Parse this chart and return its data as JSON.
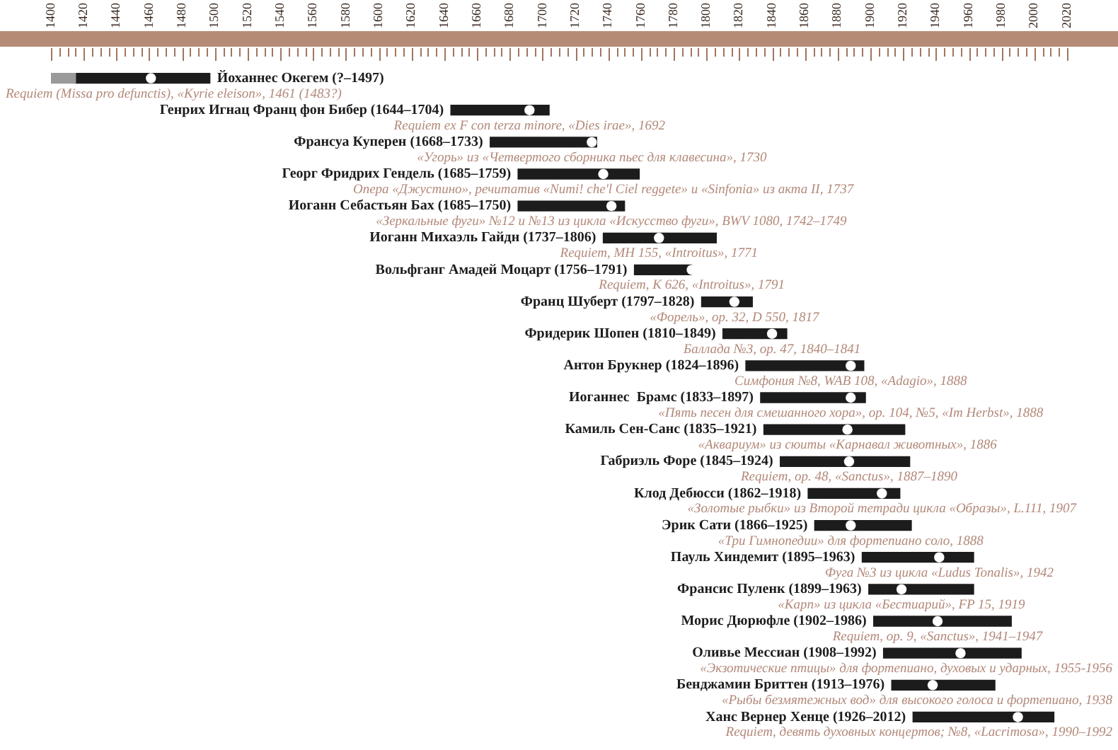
{
  "chart_data": {
    "type": "bar",
    "orientation": "horizontal",
    "categories": [
      "Йоханнес Окегем (?–1497)",
      "Генрих Игнац Франц фон Бибер (1644–1704)",
      "Франсуа Куперен (1668–1733)",
      "Георг Фридрих Гендель (1685–1759)",
      "Иоганн Себастьян Бах (1685–1750)",
      "Иоганн Михаэль Гайдн (1737–1806)",
      "Вольфганг Амадей Моцарт (1756–1791)",
      "Франц Шуберт (1797–1828)",
      "Фридерик Шопен (1810–1849)",
      "Антон Брукнер (1824–1896)",
      "Иоганнес  Брамс (1833–1897)",
      "Камиль Сен-Санс (1835–1921)",
      "Габриэль Форе (1845–1924)",
      "Клод Дебюсси (1862–1918)",
      "Эрик Сати (1866–1925)",
      "Пауль Хиндемит (1895–1963)",
      "Франсис Пуленк (1899–1963)",
      "Морис Дюрюфле (1902–1986)",
      "Оливье Мессиан (1908–1992)",
      "Бенджамин Бриттен (1913–1976)",
      "Ханс Вернер Хенце (1926–2012)"
    ],
    "series": [
      {
        "color": "#9a9a9a",
        "base": [
          1400,
          null,
          null,
          null,
          null,
          null,
          null,
          null,
          null,
          null,
          null,
          null,
          null,
          null,
          null,
          null,
          null,
          null,
          null,
          null,
          null
        ],
        "values": [
          15,
          null,
          null,
          null,
          null,
          null,
          null,
          null,
          null,
          null,
          null,
          null,
          null,
          null,
          null,
          null,
          null,
          null,
          null,
          null,
          null
        ]
      },
      {
        "color": "#1c1c1c",
        "base": [
          1415,
          1644,
          1668,
          1685,
          1685,
          1737,
          1756,
          1797,
          1810,
          1824,
          1833,
          1835,
          1845,
          1862,
          1866,
          1895,
          1899,
          1902,
          1908,
          1913,
          1926
        ],
        "values": [
          82,
          60,
          65,
          74,
          65,
          69,
          35,
          31,
          39,
          72,
          64,
          86,
          79,
          56,
          59,
          68,
          64,
          84,
          84,
          63,
          86
        ]
      },
      {
        "type": "scatter",
        "color": "#ffffff",
        "values": [
          1461,
          1692,
          1730,
          1737,
          1742,
          1771,
          1791,
          1817,
          1840,
          1888,
          1888,
          1886,
          1887,
          1907,
          1888,
          1942,
          1919,
          1941,
          1955,
          1938,
          1990
        ]
      }
    ],
    "xlim": [
      1400,
      2020
    ],
    "xticks": [
      1400,
      {
        "value": 1405,
        "label": null
      },
      {
        "value": 1410,
        "label": null
      },
      {
        "value": 1415,
        "label": null
      },
      1420,
      {
        "value": 1425,
        "label": null
      },
      {
        "value": 1430,
        "label": null
      },
      {
        "value": 1435,
        "label": null
      },
      1440,
      {
        "value": 1445,
        "label": null
      },
      {
        "value": 1450,
        "label": null
      },
      {
        "value": 1455,
        "label": null
      },
      1460,
      {
        "value": 1465,
        "label": null
      },
      {
        "value": 1470,
        "label": null
      },
      {
        "value": 1475,
        "label": null
      },
      1480,
      {
        "value": 1485,
        "label": null
      },
      {
        "value": 1490,
        "label": null
      },
      {
        "value": 1495,
        "label": null
      },
      1500,
      {
        "value": 1505,
        "label": null
      },
      {
        "value": 1510,
        "label": null
      },
      {
        "value": 1515,
        "label": null
      },
      1520,
      {
        "value": 1525,
        "label": null
      },
      {
        "value": 1530,
        "label": null
      },
      {
        "value": 1535,
        "label": null
      },
      1540,
      {
        "value": 1545,
        "label": null
      },
      {
        "value": 1550,
        "label": null
      },
      {
        "value": 1555,
        "label": null
      },
      1560,
      {
        "value": 1565,
        "label": null
      },
      {
        "value": 1570,
        "label": null
      },
      {
        "value": 1575,
        "label": null
      },
      1580,
      {
        "value": 1585,
        "label": null
      },
      {
        "value": 1590,
        "label": null
      },
      {
        "value": 1595,
        "label": null
      },
      1600,
      {
        "value": 1605,
        "label": null
      },
      {
        "value": 1610,
        "label": null
      },
      {
        "value": 1615,
        "label": null
      },
      1620,
      {
        "value": 1625,
        "label": null
      },
      {
        "value": 1630,
        "label": null
      },
      {
        "value": 1635,
        "label": null
      },
      1640,
      {
        "value": 1645,
        "label": null
      },
      {
        "value": 1650,
        "label": null
      },
      {
        "value": 1655,
        "label": null
      },
      1660,
      {
        "value": 1665,
        "label": null
      },
      {
        "value": 1670,
        "label": null
      },
      {
        "value": 1675,
        "label": null
      },
      1680,
      {
        "value": 1685,
        "label": null
      },
      {
        "value": 1690,
        "label": null
      },
      {
        "value": 1695,
        "label": null
      },
      1700,
      {
        "value": 1705,
        "label": null
      },
      {
        "value": 1710,
        "label": null
      },
      {
        "value": 1715,
        "label": null
      },
      1720,
      {
        "value": 1725,
        "label": null
      },
      {
        "value": 1730,
        "label": null
      },
      {
        "value": 1735,
        "label": null
      },
      1740,
      {
        "value": 1745,
        "label": null
      },
      {
        "value": 1750,
        "label": null
      },
      {
        "value": 1755,
        "label": null
      },
      1760,
      {
        "value": 1765,
        "label": null
      },
      {
        "value": 1770,
        "label": null
      },
      {
        "value": 1775,
        "label": null
      },
      1780,
      {
        "value": 1785,
        "label": null
      },
      {
        "value": 1790,
        "label": null
      },
      {
        "value": 1795,
        "label": null
      },
      1800,
      {
        "value": 1805,
        "label": null
      },
      {
        "value": 1810,
        "label": null
      },
      {
        "value": 1815,
        "label": null
      },
      1820,
      {
        "value": 1825,
        "label": null
      },
      {
        "value": 1830,
        "label": null
      },
      {
        "value": 1835,
        "label": null
      },
      1840,
      {
        "value": 1845,
        "label": null
      },
      {
        "value": 1850,
        "label": null
      },
      {
        "value": 1855,
        "label": null
      },
      1860,
      {
        "value": 1865,
        "label": null
      },
      {
        "value": 1870,
        "label": null
      },
      {
        "value": 1875,
        "label": null
      },
      1880,
      {
        "value": 1885,
        "label": null
      },
      {
        "value": 1890,
        "label": null
      },
      {
        "value": 1895,
        "label": null
      },
      1900,
      {
        "value": 1905,
        "label": null
      },
      {
        "value": 1910,
        "label": null
      },
      {
        "value": 1915,
        "label": null
      },
      1920,
      {
        "value": 1925,
        "label": null
      },
      {
        "value": 1930,
        "label": null
      },
      {
        "value": 1935,
        "label": null
      },
      1940,
      {
        "value": 1945,
        "label": null
      },
      {
        "value": 1950,
        "label": null
      },
      {
        "value": 1955,
        "label": null
      },
      1960,
      {
        "value": 1965,
        "label": null
      },
      {
        "value": 1970,
        "label": null
      },
      {
        "value": 1975,
        "label": null
      },
      1980,
      {
        "value": 1985,
        "label": null
      },
      {
        "value": 1990,
        "label": null
      },
      {
        "value": 1995,
        "label": null
      },
      2000,
      {
        "value": 2005,
        "label": null
      },
      {
        "value": 2010,
        "label": null
      },
      {
        "value": 2015,
        "label": null
      },
      2020
    ],
    "tick_labels": "x",
    "grid": false,
    "legend": false,
    "marker": "circle",
    "annotations": [
      {
        "text": "Requiem (Missa pro defunctis), «Kyrie eleison», 1461 (1483?)",
        "x": 1461,
        "y": "Йоханнес Окегем (?–1497)"
      },
      {
        "text": "Requiem ex F con terza minore, «Dies irae», 1692",
        "x": 1692,
        "y": "Генрих Игнац Франц фон Бибер (1644–1704)"
      },
      {
        "text": "«Угорь» из «Четвертого сборника пьес для клавесина», 1730",
        "x": 1730,
        "y": "Франсуа Куперен (1668–1733)"
      },
      {
        "text": "Опера «Джустино», речитатив «Numi! che'l Ciel reggete» и «Sinfonia» из акта II, 1737",
        "x": 1737,
        "y": "Георг Фридрих Гендель (1685–1759)"
      },
      {
        "text": "«Зеркальные фуги» №12 и №13 из цикла «Искусство фуги», BWV 1080, 1742–1749",
        "x": 1742,
        "y": "Иоганн Себастьян Бах (1685–1750)"
      },
      {
        "text": "Requiem, MH 155, «Introitus», 1771",
        "x": 1771,
        "y": "Иоганн Михаэль Гайдн (1737–1806)"
      },
      {
        "text": "Requiem, K 626, «Introitus», 1791",
        "x": 1791,
        "y": "Вольфганг Амадей Моцарт (1756–1791)"
      },
      {
        "text": "«Форель», op. 32, D 550, 1817",
        "x": 1817,
        "y": "Франц Шуберт (1797–1828)"
      },
      {
        "text": "Баллада №3, op. 47, 1840–1841",
        "x": 1840,
        "y": "Фридерик Шопен (1810–1849)"
      },
      {
        "text": "Симфония №8, WAB 108, «Adagio», 1888",
        "x": 1888,
        "y": "Антон Брукнер (1824–1896)"
      },
      {
        "text": "«Пять песен для смешанного хора», op. 104, №5, «Im Herbst», 1888",
        "x": 1888,
        "y": "Иоганнес  Брамс (1833–1897)"
      },
      {
        "text": "«Аквариум» из сюиты «Карнавал животных», 1886",
        "x": 1886,
        "y": "Камиль Сен-Санс (1835–1921)"
      },
      {
        "text": "Requiem, op. 48, «Sanctus», 1887–1890",
        "x": 1887,
        "y": "Габриэль Форе (1845–1924)"
      },
      {
        "text": "«Золотые рыбки» из Второй тетради цикла «Образы», L.111, 1907",
        "x": 1907,
        "y": "Клод Дебюсси (1862–1918)"
      },
      {
        "text": "«Три Гимнопедии» для фортепиано соло, 1888",
        "x": 1888,
        "y": "Эрик Сати (1866–1925)"
      },
      {
        "text": "Фуга №3 из цикла «Ludus Tonalis», 1942",
        "x": 1942,
        "y": "Пауль Хиндемит (1895–1963)"
      },
      {
        "text": "«Карп» из цикла «Бестиарий», FP 15, 1919",
        "x": 1919,
        "y": "Франсис Пуленк (1899–1963)"
      },
      {
        "text": "Requiem, op. 9, «Sanctus», 1941–1947",
        "x": 1941,
        "y": "Морис Дюрюфле (1902–1986)"
      },
      {
        "text": "«Экзотические птицы» для фортепиано, духовых и ударных, 1955-1956",
        "x": 1955,
        "y": "Оливье Мессиан (1908–1992)"
      },
      {
        "text": "«Рыбы безмятежных вод» для высокого голоса и фортепиано, 1938",
        "x": 1938,
        "y": "Бенджамин Бриттен (1913–1976)"
      },
      {
        "text": "Requiem, девять духовных концертов; №8, «Lacrimosa», 1990–1992",
        "x": 1990,
        "y": "Ханс Вернер Хенце (1926–2012)"
      }
    ]
  }
}
